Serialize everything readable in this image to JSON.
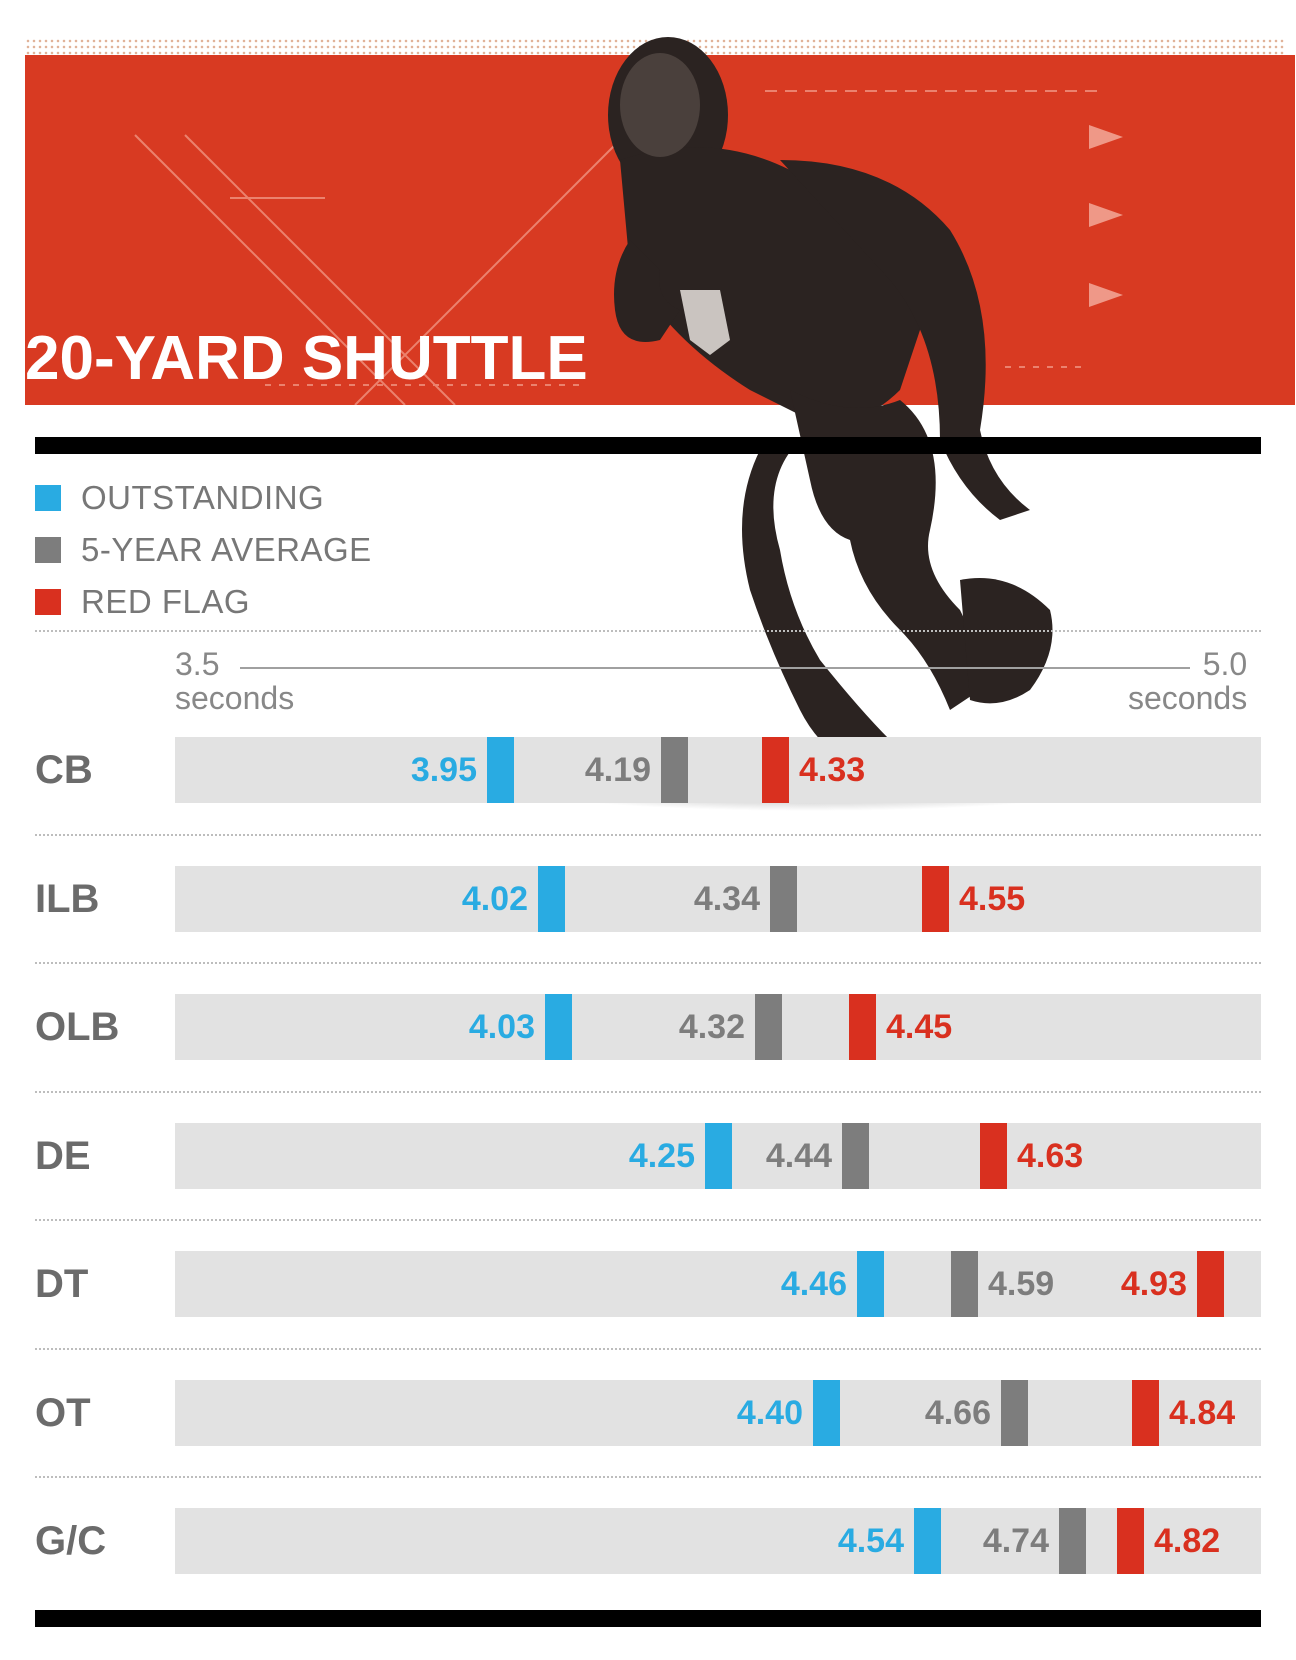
{
  "title": "20-YARD SHUTTLE",
  "legend": [
    {
      "label": "OUTSTANDING",
      "color": "#29abe2"
    },
    {
      "label": "5-YEAR AVERAGE",
      "color": "#7d7d7d"
    },
    {
      "label": "RED FLAG",
      "color": "#d9301f"
    }
  ],
  "axis": {
    "min_value": "3.5",
    "min_unit": "seconds",
    "max_value": "5.0",
    "max_unit": "seconds"
  },
  "chart_data": {
    "type": "dot-range",
    "title": "20-YARD SHUTTLE",
    "unit": "seconds",
    "xlim": [
      3.5,
      5.0
    ],
    "categories": [
      "CB",
      "ILB",
      "OLB",
      "DE",
      "DT",
      "OT",
      "G/C"
    ],
    "series": [
      {
        "name": "OUTSTANDING",
        "color": "#29abe2",
        "values": [
          3.95,
          4.02,
          4.03,
          4.25,
          4.46,
          4.4,
          4.54
        ],
        "labels": [
          "3.95",
          "4.02",
          "4.03",
          "4.25",
          "4.46",
          "4.40",
          "4.54"
        ]
      },
      {
        "name": "5-YEAR AVERAGE",
        "color": "#7d7d7d",
        "values": [
          4.19,
          4.34,
          4.32,
          4.44,
          4.59,
          4.66,
          4.74
        ],
        "labels": [
          "4.19",
          "4.34",
          "4.32",
          "4.44",
          "4.59",
          "4.66",
          "4.74"
        ]
      },
      {
        "name": "RED FLAG",
        "color": "#d9301f",
        "values": [
          4.33,
          4.55,
          4.45,
          4.63,
          4.93,
          4.84,
          4.82
        ],
        "labels": [
          "4.33",
          "4.55",
          "4.45",
          "4.63",
          "4.93",
          "4.84",
          "4.82"
        ]
      }
    ],
    "grid": false
  }
}
